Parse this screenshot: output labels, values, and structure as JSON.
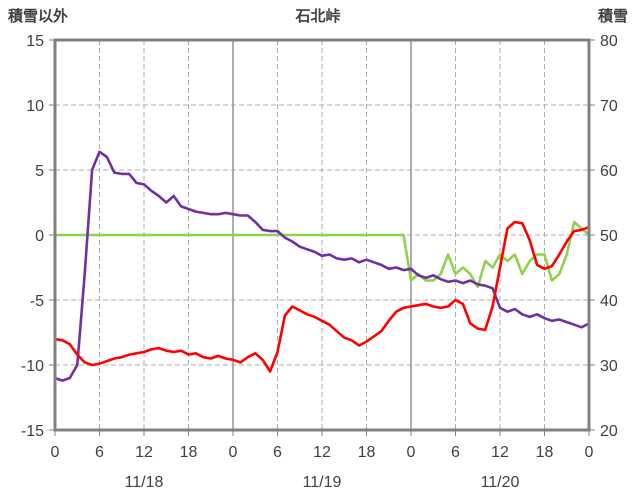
{
  "chart_data": {
    "type": "line",
    "title": "石北峠",
    "left_axis": {
      "label": "積雪以外",
      "min": -15,
      "max": 15,
      "ticks": [
        15,
        10,
        5,
        0,
        -5,
        -10,
        -15
      ]
    },
    "right_axis": {
      "label": "積雪",
      "min": 20,
      "max": 80,
      "ticks": [
        80,
        70,
        60,
        50,
        40,
        30,
        20
      ]
    },
    "x_axis": {
      "min": 0,
      "max": 72,
      "unit": "hour",
      "tick_hours": [
        0,
        6,
        12,
        18,
        24,
        30,
        36,
        42,
        48,
        54,
        60,
        66,
        72
      ],
      "tick_labels": [
        "0",
        "6",
        "12",
        "18",
        "0",
        "6",
        "12",
        "18",
        "0",
        "6",
        "12",
        "18",
        "0"
      ],
      "day_boundaries": [
        24,
        48
      ],
      "day_labels": [
        {
          "label": "11/18",
          "hour": 12
        },
        {
          "label": "11/19",
          "hour": 36
        },
        {
          "label": "11/20",
          "hour": 60
        }
      ]
    },
    "grid": true,
    "legend": "none",
    "colors": {
      "grid": "#ADADAD",
      "day_line": "#8C8C8C",
      "frame": "#808080",
      "text": "#404040"
    },
    "series": [
      {
        "name": "snow-depth",
        "color": "#92D050",
        "axis": "right",
        "values": [
          50,
          50,
          50,
          50,
          50,
          50,
          50,
          50,
          50,
          50,
          50,
          50,
          50,
          50,
          50,
          50,
          50,
          50,
          50,
          50,
          50,
          50,
          50,
          50,
          50,
          50,
          50,
          50,
          50,
          50,
          50,
          50,
          50,
          50,
          50,
          50,
          50,
          50,
          50,
          50,
          50,
          50,
          50,
          50,
          50,
          50,
          50,
          50,
          43,
          44,
          43,
          43,
          44,
          47,
          44,
          45,
          44,
          42,
          46,
          45,
          47,
          46,
          47,
          44,
          46,
          47,
          47,
          43,
          44,
          47,
          52,
          51,
          50
        ]
      },
      {
        "name": "purple-line",
        "color": "#7030A0",
        "axis": "left",
        "values": [
          -11,
          -11.2,
          -11,
          -10,
          -3,
          5,
          6.4,
          6,
          4.8,
          4.7,
          4.7,
          4,
          3.9,
          3.4,
          3,
          2.5,
          3,
          2.2,
          2,
          1.8,
          1.7,
          1.6,
          1.6,
          1.7,
          1.6,
          1.5,
          1.5,
          1,
          0.4,
          0.3,
          0.3,
          -0.2,
          -0.5,
          -0.9,
          -1.1,
          -1.3,
          -1.6,
          -1.5,
          -1.8,
          -1.9,
          -1.8,
          -2.1,
          -1.9,
          -2.1,
          -2.3,
          -2.6,
          -2.5,
          -2.7,
          -2.6,
          -3.1,
          -3.3,
          -3.1,
          -3.4,
          -3.6,
          -3.5,
          -3.7,
          -3.5,
          -3.8,
          -3.9,
          -4.1,
          -5.6,
          -5.9,
          -5.7,
          -6.1,
          -6.3,
          -6.1,
          -6.4,
          -6.6,
          -6.5,
          -6.7,
          -6.9,
          -7.1,
          -6.8
        ]
      },
      {
        "name": "red-line",
        "color": "#FF0000",
        "axis": "left",
        "values": [
          -8,
          -8.1,
          -8.4,
          -9.2,
          -9.8,
          -10,
          -9.9,
          -9.7,
          -9.5,
          -9.4,
          -9.2,
          -9.1,
          -9,
          -8.8,
          -8.7,
          -8.9,
          -9,
          -8.9,
          -9.2,
          -9.1,
          -9.4,
          -9.5,
          -9.3,
          -9.5,
          -9.6,
          -9.8,
          -9.4,
          -9.1,
          -9.6,
          -10.5,
          -9,
          -6.2,
          -5.5,
          -5.8,
          -6.1,
          -6.3,
          -6.6,
          -6.9,
          -7.4,
          -7.9,
          -8.1,
          -8.5,
          -8.2,
          -7.8,
          -7.4,
          -6.6,
          -5.9,
          -5.6,
          -5.5,
          -5.4,
          -5.3,
          -5.5,
          -5.6,
          -5.5,
          -5,
          -5.3,
          -6.8,
          -7.2,
          -7.3,
          -5.5,
          -2.5,
          0.5,
          1,
          0.9,
          -0.4,
          -2.3,
          -2.6,
          -2.4,
          -1.5,
          -0.5,
          0.3,
          0.4,
          0.6
        ]
      }
    ]
  }
}
